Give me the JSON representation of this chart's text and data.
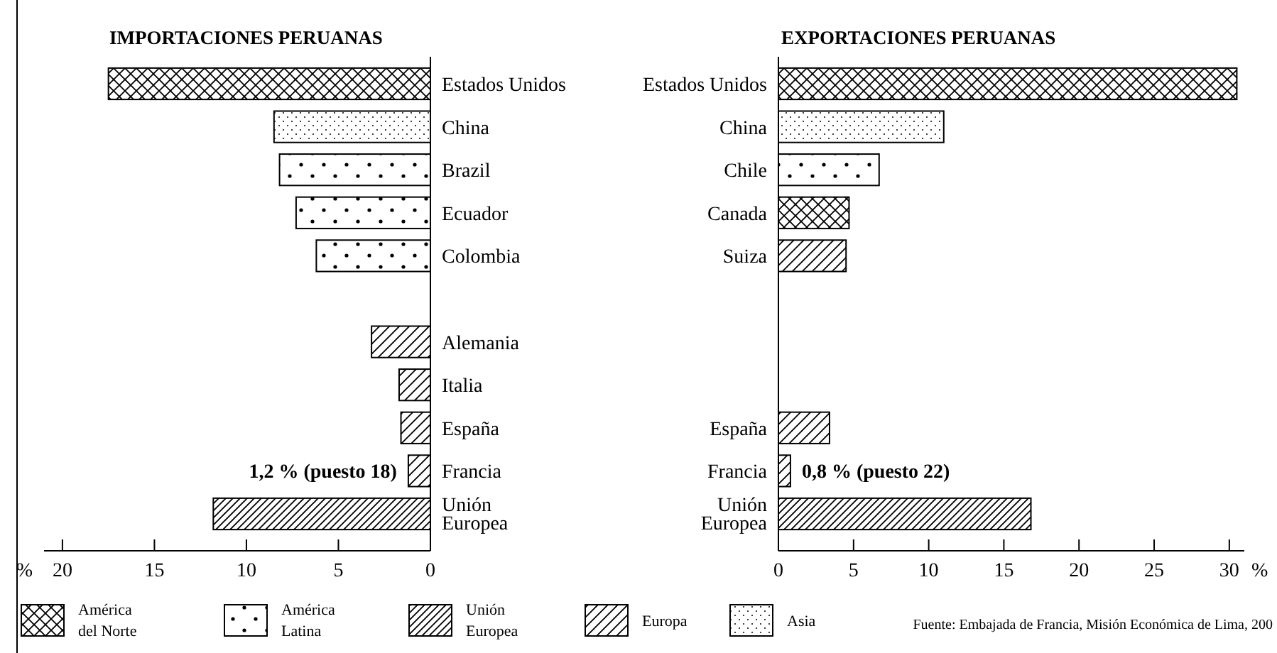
{
  "chart_data": [
    {
      "type": "bar",
      "title": "IMPORTACIONES PERUANAS",
      "orientation": "horizontal",
      "legend": "bottom",
      "xlabel": "%",
      "categories": [
        "Estados Unidos",
        "China",
        "Brazil",
        "Ecuador",
        "Colombia",
        null,
        "Alemania",
        "Italia",
        "España",
        "Francia",
        "Unión\nEuropea"
      ],
      "xlim": [
        21,
        0
      ],
      "xticks": [
        20,
        15,
        10,
        5,
        0
      ],
      "series": [
        {
          "name": "América del Norte",
          "color": "#000000",
          "values": [
            17.5,
            null,
            null,
            null,
            null,
            null,
            null,
            null,
            null,
            null,
            null
          ]
        },
        {
          "name": "América Latina",
          "color": "#000000",
          "values": [
            null,
            null,
            8.2,
            7.3,
            6.2,
            null,
            null,
            null,
            null,
            null,
            null
          ]
        },
        {
          "name": "Unión Europea",
          "color": "#000000",
          "values": [
            null,
            null,
            null,
            null,
            null,
            null,
            null,
            null,
            null,
            null,
            11.8
          ]
        },
        {
          "name": "Europa",
          "color": "#000000",
          "values": [
            null,
            null,
            null,
            null,
            null,
            null,
            3.2,
            1.7,
            1.6,
            1.2,
            null
          ]
        },
        {
          "name": "Asia",
          "color": "#000000",
          "values": [
            null,
            8.5,
            null,
            null,
            null,
            null,
            null,
            null,
            null,
            null,
            null
          ]
        }
      ],
      "annotations": [
        {
          "text": "1,2 % (puesto 18)",
          "x": 1.2,
          "y": "Francia"
        }
      ]
    },
    {
      "type": "bar",
      "title": "EXPORTACIONES PERUANAS",
      "orientation": "horizontal",
      "xlabel": "%",
      "categories": [
        "Estados Unidos",
        "China",
        "Chile",
        "Canada",
        "Suiza",
        null,
        null,
        null,
        "España",
        "Francia",
        "Unión\nEuropea"
      ],
      "xlim": [
        0,
        31
      ],
      "xticks": [
        0,
        5,
        10,
        15,
        20,
        25,
        30
      ],
      "series": [
        {
          "color": "#000000",
          "values": [
            30.5,
            null,
            null,
            4.7,
            null,
            null,
            null,
            null,
            null,
            null,
            null
          ]
        },
        {
          "color": "#000000",
          "values": [
            null,
            null,
            6.7,
            null,
            null,
            null,
            null,
            null,
            null,
            null,
            null
          ]
        },
        {
          "color": "#000000",
          "values": [
            null,
            null,
            null,
            null,
            null,
            null,
            null,
            null,
            null,
            null,
            16.8
          ]
        },
        {
          "color": "#000000",
          "values": [
            null,
            null,
            null,
            null,
            4.5,
            null,
            null,
            null,
            3.4,
            0.8,
            null
          ]
        },
        {
          "color": "#000000",
          "values": [
            null,
            11.0,
            null,
            null,
            null,
            null,
            null,
            null,
            null,
            null,
            null
          ]
        }
      ],
      "annotations": [
        {
          "text": "0,8 % (puesto 22)",
          "x": 0.8,
          "y": "Francia"
        },
        "Fuente: Embajada de Francia, Misión Económica de Lima, 200"
      ]
    }
  ]
}
